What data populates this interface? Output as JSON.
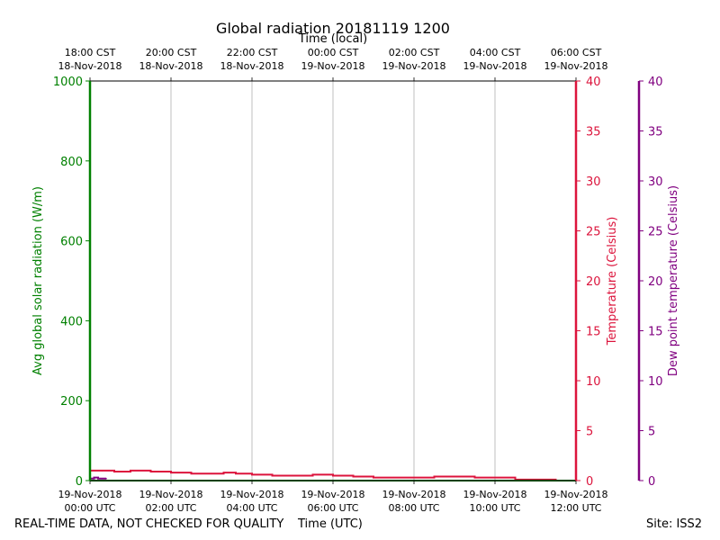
{
  "chart_data": {
    "type": "line",
    "title": "Global radiation 20181119 1200",
    "xlabel_bottom": "Time (UTC)",
    "xlabel_top": "Time (local)",
    "ylabel_left": "Avg global solar radiation (W/m)",
    "ylabel_right": "Temperature (Celsius)",
    "ylabel_right2": "Dew point temperature (Celsius)",
    "x_ticks_bottom": [
      {
        "line1": "19-Nov-2018",
        "line2": "00:00 UTC"
      },
      {
        "line1": "19-Nov-2018",
        "line2": "02:00 UTC"
      },
      {
        "line1": "19-Nov-2018",
        "line2": "04:00 UTC"
      },
      {
        "line1": "19-Nov-2018",
        "line2": "06:00 UTC"
      },
      {
        "line1": "19-Nov-2018",
        "line2": "08:00 UTC"
      },
      {
        "line1": "19-Nov-2018",
        "line2": "10:00 UTC"
      },
      {
        "line1": "19-Nov-2018",
        "line2": "12:00 UTC"
      }
    ],
    "x_ticks_top": [
      {
        "line1": "18:00 CST",
        "line2": "18-Nov-2018"
      },
      {
        "line1": "20:00 CST",
        "line2": "18-Nov-2018"
      },
      {
        "line1": "22:00 CST",
        "line2": "18-Nov-2018"
      },
      {
        "line1": "00:00 CST",
        "line2": "19-Nov-2018"
      },
      {
        "line1": "02:00 CST",
        "line2": "19-Nov-2018"
      },
      {
        "line1": "04:00 CST",
        "line2": "19-Nov-2018"
      },
      {
        "line1": "06:00 CST",
        "line2": "19-Nov-2018"
      }
    ],
    "x_range_hours_utc": [
      0,
      12
    ],
    "ylim_left": [
      0,
      1000
    ],
    "yticks_left": [
      0,
      200,
      400,
      600,
      800,
      1000
    ],
    "ylim_right": [
      0,
      40
    ],
    "yticks_right": [
      0,
      5,
      10,
      15,
      20,
      25,
      30,
      35,
      40
    ],
    "ylim_right2": [
      0,
      40
    ],
    "yticks_right2": [
      0,
      5,
      10,
      15,
      20,
      25,
      30,
      35,
      40
    ],
    "grid": "vertical",
    "colors": {
      "radiation": "#008000",
      "temperature": "#dc143c",
      "dewpoint": "#800080"
    },
    "series": [
      {
        "axis": "right",
        "color": "#dc143c",
        "x": [
          0.0,
          0.3,
          0.6,
          1.0,
          1.5,
          2.0,
          2.5,
          3.0,
          3.3,
          3.6,
          4.0,
          4.5,
          5.0,
          5.5,
          6.0,
          6.5,
          7.0,
          7.5,
          8.0,
          8.5,
          9.0,
          9.5,
          10.0,
          10.5,
          11.0,
          11.5,
          12.0
        ],
        "values": [
          1.0,
          1.0,
          0.9,
          1.0,
          0.9,
          0.8,
          0.7,
          0.7,
          0.8,
          0.7,
          0.6,
          0.5,
          0.5,
          0.6,
          0.5,
          0.4,
          0.3,
          0.3,
          0.3,
          0.4,
          0.4,
          0.3,
          0.3,
          0.1,
          0.1,
          0.0,
          0.0
        ]
      },
      {
        "axis": "left",
        "color": "#008000",
        "x": [
          0.0,
          12.0
        ],
        "values": [
          0,
          0
        ]
      },
      {
        "axis": "right2",
        "color": "#800080",
        "x": [
          0.0,
          0.1,
          0.2,
          0.3,
          0.4
        ],
        "values": [
          0.2,
          0.3,
          0.2,
          0.2,
          0.2
        ]
      }
    ]
  },
  "footer": {
    "left": "REAL-TIME DATA, NOT CHECKED FOR QUALITY",
    "center": "Time (UTC)",
    "right": "Site: ISS2"
  }
}
